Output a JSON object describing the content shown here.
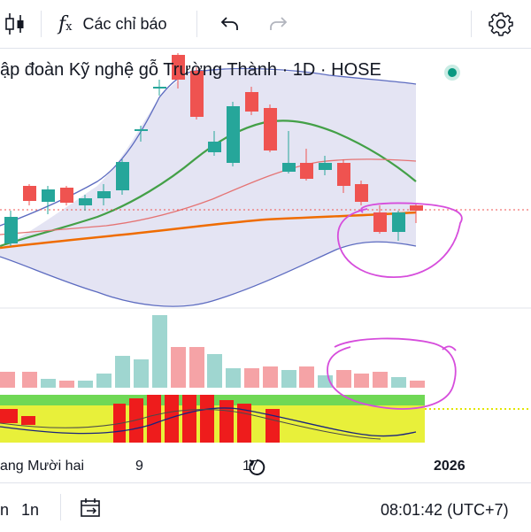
{
  "toolbar": {
    "indicators_label": "Các chỉ báo",
    "candles_icon": "candlestick-icon",
    "fx_icon": "fx-icon",
    "undo_icon": "undo-icon",
    "redo_icon": "redo-icon",
    "settings_icon": "gear-icon"
  },
  "chart": {
    "title": "ập đoàn Kỹ nghệ gỗ Trường Thành · 1D · HOSE",
    "status_color": "#089981"
  },
  "x_axis": {
    "labels": [
      "ang Mười hai",
      "9",
      "17",
      "2026"
    ]
  },
  "bottom_bar": {
    "range_a": "n",
    "range_b": "1n",
    "date_range_icon": "calendar-range-icon",
    "time": "08:01:42 (UTC+7)"
  },
  "colors": {
    "up": "#26a69a",
    "down": "#ef5350",
    "bollinger_fill": "#e4e4f3",
    "bollinger_line": "#5c6bc0",
    "ma_green": "#43a047",
    "ma_red": "#e57373",
    "ma_orange": "#ef6c00",
    "annotation": "#d64ddc"
  }
}
